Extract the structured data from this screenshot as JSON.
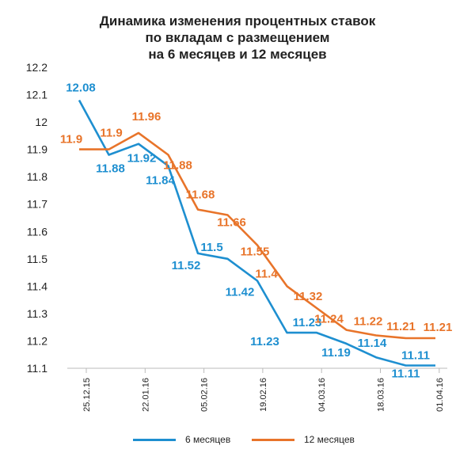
{
  "chart_data": {
    "type": "line",
    "title": [
      "Динамика изменения процентных ставок",
      "по вкладам с размещением",
      "на 6 месяцев и 12 месяцев"
    ],
    "xlabel": "",
    "ylabel": "",
    "x_tick_labels": [
      "25.12.15",
      "22.01.16",
      "05.02.16",
      "19.02.16",
      "04.03.16",
      "18.03.16",
      "01.04.16"
    ],
    "y_ticks": [
      "12.2",
      "12.1",
      "12",
      "11.9",
      "11.8",
      "11.7",
      "11.6",
      "11.5",
      "11.4",
      "11.3",
      "11.2",
      "11.1"
    ],
    "ylim": [
      11.1,
      12.2
    ],
    "grid": false,
    "legend_position": "bottom",
    "series": [
      {
        "name": "6 месяцев",
        "color": "#1e8fd0",
        "values": [
          12.08,
          11.88,
          11.92,
          11.84,
          11.52,
          11.5,
          11.42,
          11.23,
          11.23,
          11.19,
          11.14,
          11.11,
          11.11
        ],
        "labels": [
          "12.08",
          "11.88",
          "11.92",
          "11.84",
          "11.52",
          "11.5",
          "11.42",
          "11.23",
          "11.23",
          "11.19",
          "11.14",
          "11.11",
          "11.11"
        ]
      },
      {
        "name": "12 месяцев",
        "color": "#e8742a",
        "values": [
          11.9,
          11.9,
          11.96,
          11.88,
          11.68,
          11.66,
          11.55,
          11.4,
          11.32,
          11.24,
          11.22,
          11.21,
          11.21
        ],
        "labels": [
          "11.9",
          "11.9",
          "11.96",
          "11.88",
          "11.68",
          "11.66",
          "11.55",
          "11.4",
          "11.32",
          "11.24",
          "11.22",
          "11.21",
          "11.21"
        ]
      }
    ]
  }
}
